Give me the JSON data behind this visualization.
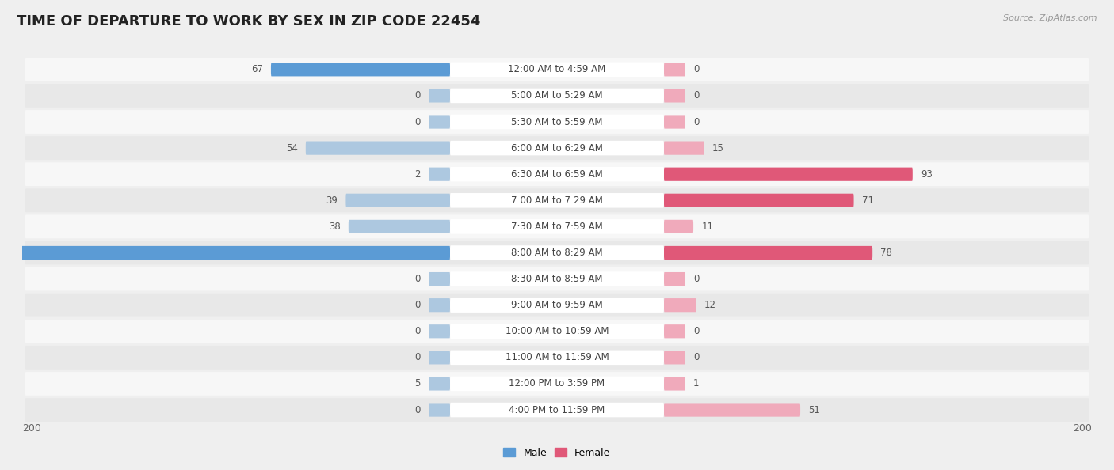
{
  "title": "TIME OF DEPARTURE TO WORK BY SEX IN ZIP CODE 22454",
  "source": "Source: ZipAtlas.com",
  "categories": [
    "12:00 AM to 4:59 AM",
    "5:00 AM to 5:29 AM",
    "5:30 AM to 5:59 AM",
    "6:00 AM to 6:29 AM",
    "6:30 AM to 6:59 AM",
    "7:00 AM to 7:29 AM",
    "7:30 AM to 7:59 AM",
    "8:00 AM to 8:29 AM",
    "8:30 AM to 8:59 AM",
    "9:00 AM to 9:59 AM",
    "10:00 AM to 10:59 AM",
    "11:00 AM to 11:59 AM",
    "12:00 PM to 3:59 PM",
    "4:00 PM to 11:59 PM"
  ],
  "male_values": [
    67,
    0,
    0,
    54,
    2,
    39,
    38,
    200,
    0,
    0,
    0,
    0,
    5,
    0
  ],
  "female_values": [
    0,
    0,
    0,
    15,
    93,
    71,
    11,
    78,
    0,
    12,
    0,
    0,
    1,
    51
  ],
  "male_color_light": "#adc8e0",
  "male_color_dark": "#5b9bd5",
  "female_color_light": "#f0aabb",
  "female_color_dark": "#e05878",
  "max_val": 200,
  "bg_color": "#efefef",
  "row_bg_white": "#f7f7f7",
  "row_bg_gray": "#e8e8e8",
  "label_pill_color": "#ffffff",
  "title_fontsize": 13,
  "label_fontsize": 8.5,
  "value_fontsize": 8.5,
  "tick_fontsize": 9,
  "legend_fontsize": 9,
  "source_fontsize": 8,
  "bright_threshold": 50
}
